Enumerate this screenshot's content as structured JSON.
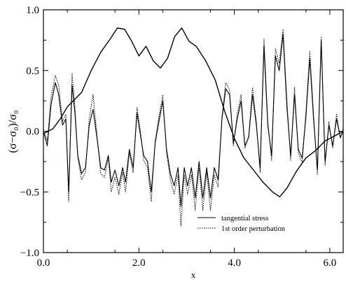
{
  "chart_data": {
    "type": "line",
    "title": "",
    "xlabel": "x",
    "ylabel": "(σ−σ₀)/σ₀",
    "xlim": [
      0,
      6.28
    ],
    "ylim": [
      -1.0,
      1.0
    ],
    "x_ticks": [
      0,
      2,
      4,
      6
    ],
    "x_tick_labels": [
      "0.0",
      "2.0",
      "4.0",
      "6.0"
    ],
    "y_ticks": [
      -1,
      -0.5,
      0,
      0.5,
      1
    ],
    "y_tick_labels": [
      "−1.0",
      "−0.5",
      "0.0",
      "0.5",
      "1.0"
    ],
    "grid": false,
    "legend": {
      "placement": "bottom-right"
    },
    "smooth_series": {
      "name": "",
      "x": [
        0.0,
        0.2,
        0.35,
        0.5,
        0.65,
        0.8,
        1.0,
        1.2,
        1.4,
        1.55,
        1.7,
        1.85,
        2.0,
        2.15,
        2.3,
        2.45,
        2.6,
        2.75,
        2.9,
        3.05,
        3.2,
        3.4,
        3.6,
        3.8,
        4.0,
        4.2,
        4.4,
        4.6,
        4.8,
        4.95,
        5.1,
        5.3,
        5.5,
        5.7,
        5.9,
        6.1,
        6.28
      ],
      "y": [
        -0.02,
        0.02,
        0.1,
        0.2,
        0.26,
        0.32,
        0.5,
        0.65,
        0.76,
        0.85,
        0.84,
        0.74,
        0.62,
        0.7,
        0.58,
        0.52,
        0.6,
        0.78,
        0.85,
        0.74,
        0.7,
        0.58,
        0.42,
        0.16,
        -0.06,
        -0.22,
        -0.32,
        -0.42,
        -0.5,
        -0.54,
        -0.47,
        -0.33,
        -0.22,
        -0.16,
        -0.08,
        -0.04,
        0.0
      ]
    },
    "series": [
      {
        "name": "tangential stress",
        "style": "solid",
        "x": [
          0.0,
          0.08,
          0.16,
          0.25,
          0.32,
          0.4,
          0.47,
          0.53,
          0.6,
          0.66,
          0.72,
          0.8,
          0.88,
          0.96,
          1.04,
          1.12,
          1.2,
          1.28,
          1.36,
          1.42,
          1.5,
          1.58,
          1.66,
          1.72,
          1.8,
          1.88,
          1.96,
          2.04,
          2.1,
          2.18,
          2.26,
          2.34,
          2.42,
          2.5,
          2.58,
          2.66,
          2.74,
          2.82,
          2.88,
          2.95,
          3.02,
          3.1,
          3.18,
          3.26,
          3.34,
          3.42,
          3.5,
          3.58,
          3.66,
          3.74,
          3.82,
          3.9,
          3.98,
          4.06,
          4.14,
          4.22,
          4.3,
          4.38,
          4.46,
          4.54,
          4.62,
          4.7,
          4.78,
          4.86,
          4.94,
          5.02,
          5.1,
          5.18,
          5.26,
          5.34,
          5.42,
          5.5,
          5.58,
          5.66,
          5.74,
          5.82,
          5.9,
          5.98,
          6.06,
          6.14,
          6.22,
          6.28
        ],
        "y": [
          0.0,
          -0.12,
          0.22,
          0.4,
          0.3,
          0.05,
          0.1,
          -0.5,
          0.38,
          0.15,
          -0.2,
          -0.35,
          -0.3,
          0.05,
          0.18,
          -0.05,
          -0.3,
          -0.32,
          -0.2,
          -0.42,
          -0.32,
          -0.45,
          -0.3,
          -0.42,
          -0.15,
          -0.3,
          0.15,
          -0.05,
          -0.2,
          -0.25,
          -0.5,
          -0.1,
          0.08,
          0.25,
          -0.15,
          -0.35,
          -0.45,
          -0.3,
          -0.62,
          -0.3,
          -0.45,
          -0.3,
          -0.55,
          -0.25,
          -0.55,
          -0.3,
          -0.55,
          -0.3,
          -0.4,
          0.1,
          0.35,
          0.3,
          -0.1,
          0.1,
          0.25,
          -0.12,
          -0.05,
          0.3,
          0.05,
          -0.3,
          0.7,
          0.05,
          -0.2,
          0.62,
          0.5,
          0.8,
          0.2,
          -0.2,
          0.3,
          -0.15,
          -0.22,
          0.12,
          0.6,
          0.1,
          -0.32,
          0.75,
          -0.25,
          0.05,
          -0.12,
          0.1,
          -0.05,
          0.0
        ]
      },
      {
        "name": "1st order perturbation",
        "style": "dotted",
        "x": [
          0.0,
          0.08,
          0.16,
          0.25,
          0.32,
          0.4,
          0.47,
          0.53,
          0.6,
          0.66,
          0.72,
          0.8,
          0.88,
          0.96,
          1.04,
          1.12,
          1.2,
          1.28,
          1.36,
          1.42,
          1.5,
          1.58,
          1.66,
          1.72,
          1.8,
          1.88,
          1.96,
          2.04,
          2.1,
          2.18,
          2.26,
          2.34,
          2.42,
          2.5,
          2.58,
          2.66,
          2.74,
          2.82,
          2.88,
          2.95,
          3.02,
          3.1,
          3.18,
          3.26,
          3.34,
          3.42,
          3.5,
          3.58,
          3.66,
          3.74,
          3.82,
          3.9,
          3.98,
          4.06,
          4.14,
          4.22,
          4.3,
          4.38,
          4.46,
          4.54,
          4.62,
          4.7,
          4.78,
          4.86,
          4.94,
          5.02,
          5.1,
          5.18,
          5.26,
          5.34,
          5.42,
          5.5,
          5.58,
          5.66,
          5.74,
          5.82,
          5.9,
          5.98,
          6.06,
          6.14,
          6.22,
          6.28
        ],
        "y": [
          0.02,
          -0.08,
          0.28,
          0.46,
          0.38,
          0.08,
          0.14,
          -0.58,
          0.48,
          0.2,
          -0.22,
          -0.4,
          -0.34,
          0.1,
          0.3,
          -0.02,
          -0.35,
          -0.38,
          -0.22,
          -0.5,
          -0.38,
          -0.52,
          -0.34,
          -0.5,
          -0.18,
          -0.34,
          0.2,
          -0.02,
          -0.24,
          -0.3,
          -0.58,
          -0.08,
          0.12,
          0.3,
          -0.18,
          -0.4,
          -0.52,
          -0.36,
          -0.78,
          -0.36,
          -0.52,
          -0.36,
          -0.65,
          -0.3,
          -0.65,
          -0.34,
          -0.65,
          -0.36,
          -0.46,
          0.12,
          0.4,
          0.34,
          -0.12,
          0.14,
          0.3,
          -0.14,
          -0.04,
          0.36,
          0.08,
          -0.34,
          0.76,
          0.08,
          -0.24,
          0.68,
          0.56,
          0.84,
          0.26,
          -0.24,
          0.36,
          -0.18,
          -0.26,
          0.16,
          0.66,
          0.14,
          -0.36,
          0.78,
          -0.28,
          0.08,
          -0.14,
          0.14,
          -0.06,
          0.02
        ]
      }
    ]
  }
}
